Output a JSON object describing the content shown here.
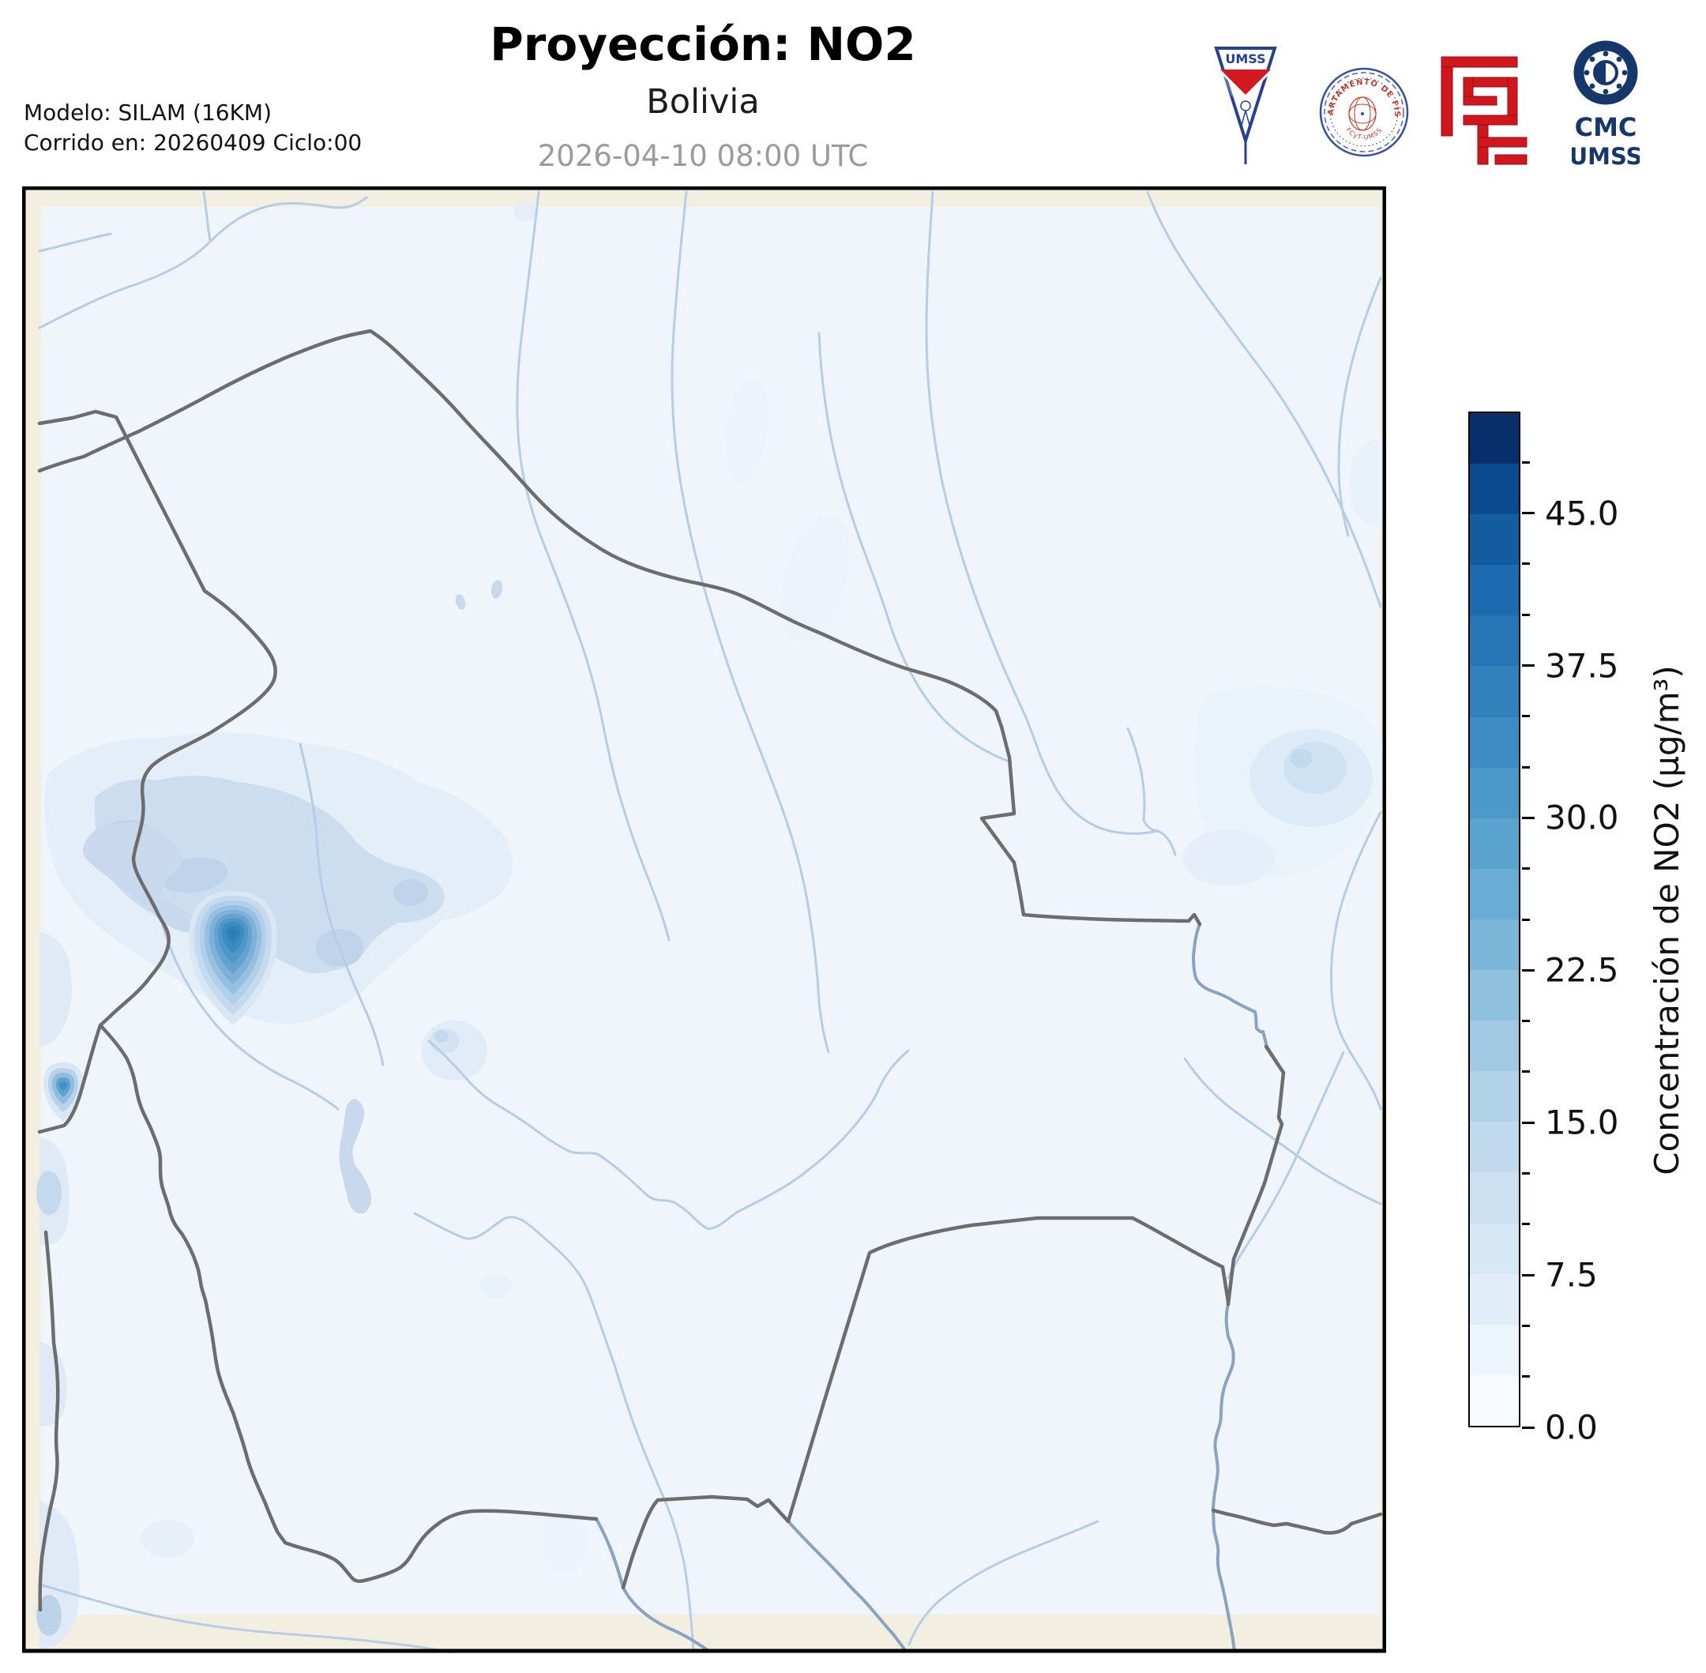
{
  "header": {
    "title": "Proyección: NO2",
    "subtitle": "Bolivia",
    "datetime": "2026-04-10 08:00 UTC",
    "model_line1": "Modelo: SILAM (16KM)",
    "model_line2": "Corrido en: 20260409 Ciclo:00"
  },
  "logos": {
    "umss_pennant_text": "UMSS",
    "seal_top_text": "DEPARTAMENTO DE FÍSICA",
    "seal_bottom_text": "FCyT-UMSS",
    "cmc_line1": "CMC",
    "cmc_line2": "UMSS"
  },
  "colorbar": {
    "label": "Concentración de NO2 (µg/m³)",
    "min": 0,
    "max": 50,
    "step": 2.5,
    "major_tick_step": 7.5,
    "major_tick_labels": [
      "45.0",
      "37.5",
      "30.0",
      "22.5",
      "15.0",
      "7.5",
      "0.0"
    ],
    "segment_colors_top_to_bottom": [
      "#08306b",
      "#0a4a8f",
      "#125c9f",
      "#1c6bb0",
      "#2676b6",
      "#3181bd",
      "#3d8dc4",
      "#4a99c9",
      "#59a3cf",
      "#69add5",
      "#7cb7da",
      "#8fc0dd",
      "#a1c9e1",
      "#b2d2e8",
      "#c0d9ec",
      "#cce0f1",
      "#d6e8f5",
      "#e1eef9",
      "#ecf4fc",
      "#f7fbff"
    ]
  },
  "map": {
    "region": "Bolivia",
    "variable": "NO2",
    "colors": {
      "land_background": "#f3efe0",
      "domain_fill": "#eff5fb",
      "river": "#b6cde9",
      "major_river": "#8aa2c3",
      "border": "#6d6d6d",
      "lake": "#c8d9ed",
      "frame": "#000000",
      "hotspot_center": "#2c7eb7"
    }
  }
}
